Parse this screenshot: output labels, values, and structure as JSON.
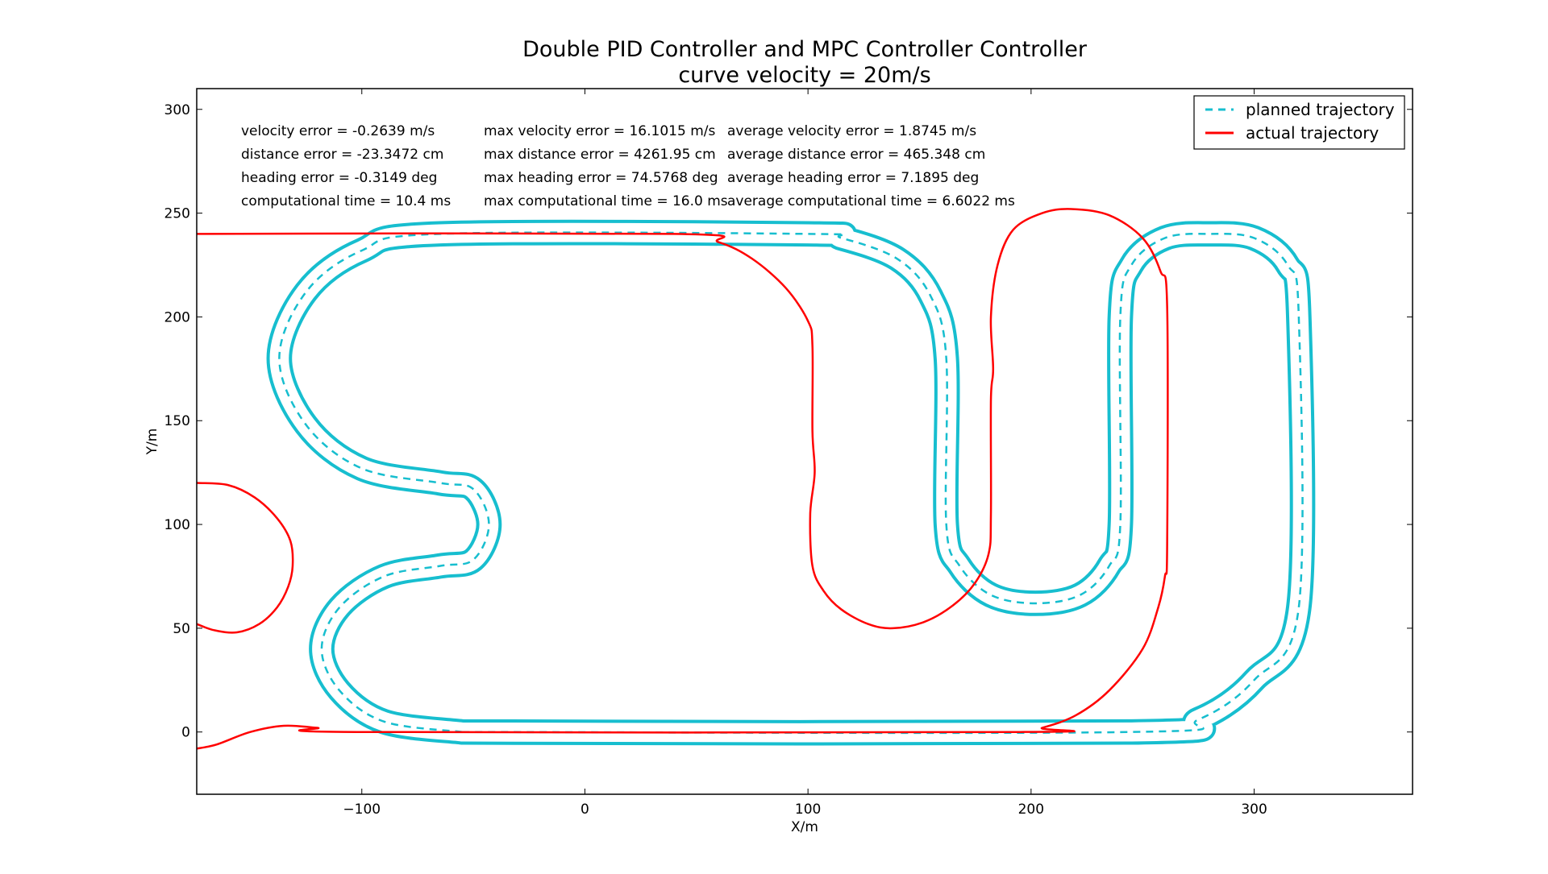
{
  "chart_data": {
    "type": "line",
    "title": "Double PID Controller and MPC Controller Controller",
    "subtitle": "curve velocity = 20m/s",
    "xlabel": "X/m",
    "ylabel": "Y/m",
    "xlim": [
      -174,
      371
    ],
    "ylim": [
      -30,
      310
    ],
    "xticks": [
      -100,
      0,
      100,
      200,
      300
    ],
    "yticks": [
      0,
      50,
      100,
      150,
      200,
      250,
      300
    ],
    "xtick_labels": [
      "−100",
      "0",
      "100",
      "200",
      "300"
    ],
    "ytick_labels": [
      "0",
      "50",
      "100",
      "150",
      "200",
      "250",
      "300"
    ],
    "grid": false,
    "legend": {
      "position": "top-right",
      "entries": [
        {
          "label": "planned trajectory",
          "style": "dashed",
          "color": "#17becf"
        },
        {
          "label": "actual trajectory",
          "style": "solid",
          "color": "#ff0000"
        }
      ]
    },
    "annotations": [
      [
        "velocity error = -0.2639 m/s",
        "max velocity error = 16.1015 m/s",
        "average velocity error = 1.8745 m/s"
      ],
      [
        "distance error = -23.3472 cm",
        "max distance error = 4261.95 cm",
        "average distance error = 465.348 cm"
      ],
      [
        "heading error = -0.3149 deg",
        "max heading error = 74.5768 deg",
        "average heading error = 7.1895 deg"
      ],
      [
        "computational time = 10.4 ms",
        "max computational time = 16.0 ms",
        "average computational time = 6.6022 ms"
      ]
    ],
    "track": {
      "half_width": 5,
      "color": "#17becf",
      "centerline": [
        [
          -55,
          0
        ],
        [
          245,
          0
        ],
        [
          275,
          6
        ],
        [
          300,
          25
        ],
        [
          320,
          60
        ],
        [
          320,
          200
        ],
        [
          315,
          225
        ],
        [
          300,
          238
        ],
        [
          280,
          240
        ],
        [
          260,
          238
        ],
        [
          245,
          225
        ],
        [
          240,
          200
        ],
        [
          240,
          100
        ],
        [
          235,
          80
        ],
        [
          222,
          66
        ],
        [
          202,
          62
        ],
        [
          182,
          66
        ],
        [
          168,
          80
        ],
        [
          162,
          100
        ],
        [
          162,
          180
        ],
        [
          155,
          210
        ],
        [
          140,
          228
        ],
        [
          115,
          238
        ],
        [
          100,
          240
        ],
        [
          -65,
          240
        ],
        [
          -100,
          232
        ],
        [
          -125,
          212
        ],
        [
          -137,
          180
        ],
        [
          -125,
          148
        ],
        [
          -100,
          127
        ],
        [
          -65,
          120
        ],
        [
          -50,
          117
        ],
        [
          -43,
          100
        ],
        [
          -50,
          83
        ],
        [
          -65,
          80
        ],
        [
          -90,
          75
        ],
        [
          -110,
          60
        ],
        [
          -118,
          40
        ],
        [
          -110,
          20
        ],
        [
          -90,
          5
        ],
        [
          -55,
          0
        ]
      ]
    },
    "series": [
      {
        "name": "actual trajectory",
        "color": "#ff0000",
        "segments": [
          [
            [
              -174,
              240
            ],
            [
              40,
              240
            ],
            [
              60,
              236
            ],
            [
              75,
              228
            ],
            [
              90,
              214
            ],
            [
              100,
              198
            ],
            [
              102,
              186
            ],
            [
              102,
              145
            ],
            [
              103,
              125
            ],
            [
              101,
              105
            ],
            [
              102,
              80
            ],
            [
              107,
              68
            ],
            [
              115,
              59
            ],
            [
              127,
              52
            ],
            [
              138,
              50
            ],
            [
              152,
              53
            ],
            [
              165,
              61
            ],
            [
              175,
              72
            ],
            [
              181,
              86
            ],
            [
              182,
              105
            ],
            [
              182,
              160
            ],
            [
              183,
              175
            ],
            [
              182,
              200
            ],
            [
              185,
              225
            ],
            [
              192,
              242
            ],
            [
              205,
              250
            ],
            [
              218,
              252
            ],
            [
              235,
              249
            ],
            [
              250,
              238
            ],
            [
              258,
              222
            ],
            [
              261,
              205
            ],
            [
              261,
              90
            ],
            [
              260,
              75
            ],
            [
              257,
              60
            ],
            [
              250,
              40
            ],
            [
              235,
              20
            ],
            [
              220,
              8
            ],
            [
              205,
              2
            ],
            [
              195,
              0
            ],
            [
              -100,
              0
            ],
            [
              -120,
              2
            ],
            [
              -135,
              3
            ],
            [
              -150,
              0
            ],
            [
              -165,
              -6
            ],
            [
              -174,
              -8
            ]
          ],
          [
            [
              -174,
              120
            ],
            [
              -160,
              119
            ],
            [
              -148,
              113
            ],
            [
              -138,
              103
            ],
            [
              -132,
              92
            ],
            [
              -131,
              80
            ],
            [
              -133,
              70
            ],
            [
              -138,
              60
            ],
            [
              -146,
              52
            ],
            [
              -156,
              48
            ],
            [
              -166,
              49
            ],
            [
              -174,
              52
            ]
          ]
        ]
      }
    ]
  }
}
